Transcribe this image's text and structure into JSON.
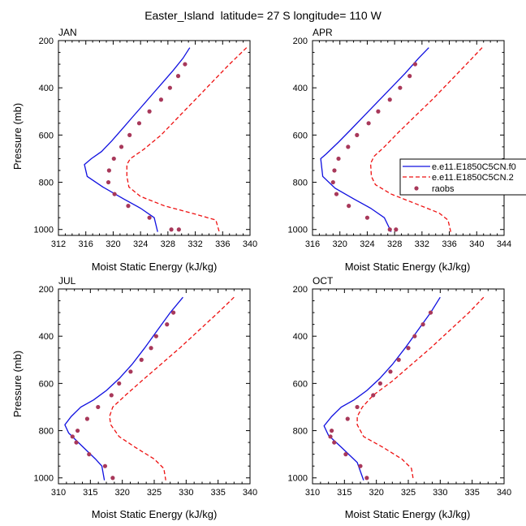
{
  "figure": {
    "title": "Easter_Island  latitude= 27 S longitude= 110 W"
  },
  "styles": {
    "model_a": {
      "color": "#1010e0",
      "dash": "solid"
    },
    "model_b": {
      "color": "#ee1111",
      "dash": "dashed"
    },
    "raobs": {
      "color": "#a8385a",
      "marker": "dot"
    }
  },
  "legend": {
    "entries": [
      "e.e11.E1850C5CN.f0",
      "e.e11.E1850C5CN.2",
      "raobs"
    ]
  },
  "chart_data": [
    {
      "type": "line",
      "panel": "JAN",
      "title": "JAN",
      "xlabel": "Moist Static Energy (kJ/kg)",
      "ylabel": "Pressure (mb)",
      "xlim": [
        312,
        340
      ],
      "ylim": [
        200,
        1025
      ],
      "y_inverted": true,
      "xticks": [
        312,
        316,
        320,
        324,
        328,
        332,
        336,
        340
      ],
      "yticks": [
        200,
        400,
        600,
        800,
        1000
      ],
      "series": [
        {
          "name": "e.e11.E1850C5CN.f0",
          "style": "model_a",
          "x": [
            331.2,
            330.2,
            328.8,
            327.3,
            325.8,
            324.3,
            322.8,
            321.3,
            319.8,
            318.3,
            316.8,
            315.8,
            316.2,
            318.5,
            321.5,
            324.0,
            326.0,
            326.5
          ],
          "y": [
            230,
            275,
            325,
            375,
            425,
            475,
            525,
            575,
            625,
            670,
            700,
            725,
            775,
            820,
            870,
            910,
            950,
            1010
          ]
        },
        {
          "name": "e.e11.E1850C5CN.2",
          "style": "model_b",
          "x": [
            339.5,
            337.0,
            334.5,
            332.0,
            329.5,
            327.0,
            324.5,
            322.5,
            322.0,
            322.0,
            322.3,
            324.0,
            327.5,
            332.0,
            335.0,
            335.5
          ],
          "y": [
            230,
            300,
            375,
            450,
            525,
            600,
            660,
            700,
            725,
            775,
            820,
            860,
            900,
            935,
            960,
            1010
          ]
        },
        {
          "name": "raobs",
          "style": "raobs",
          "marker": "dot",
          "x": [
            330.5,
            329.5,
            328.3,
            327.0,
            325.3,
            323.8,
            322.4,
            321.2,
            320.1,
            319.4,
            319.3,
            320.2,
            322.2,
            325.3,
            328.5,
            329.6
          ],
          "y": [
            300,
            350,
            400,
            450,
            500,
            550,
            600,
            650,
            700,
            750,
            800,
            850,
            900,
            950,
            1000,
            1000
          ]
        }
      ]
    },
    {
      "type": "line",
      "panel": "APR",
      "title": "APR",
      "xlabel": "Moist Static Energy (kJ/kg)",
      "ylabel": "",
      "xlim": [
        316,
        344
      ],
      "ylim": [
        200,
        1025
      ],
      "y_inverted": true,
      "xticks": [
        316,
        320,
        324,
        328,
        332,
        336,
        340,
        344
      ],
      "yticks": [
        200,
        400,
        600,
        800,
        1000
      ],
      "series": [
        {
          "name": "e.e11.E1850C5CN.f0",
          "style": "model_a",
          "x": [
            333.0,
            331.5,
            329.5,
            327.5,
            325.5,
            323.5,
            321.5,
            319.8,
            318.0,
            317.2,
            317.5,
            319.3,
            322.0,
            324.5,
            326.5,
            327.5
          ],
          "y": [
            230,
            275,
            340,
            400,
            460,
            520,
            580,
            630,
            680,
            700,
            775,
            825,
            870,
            910,
            950,
            1010
          ]
        },
        {
          "name": "e.e11.E1850C5CN.2",
          "style": "model_b",
          "x": [
            340.8,
            338.5,
            336.0,
            333.5,
            331.0,
            328.5,
            326.5,
            325.0,
            324.5,
            324.6,
            325.2,
            327.5,
            331.0,
            334.5,
            335.8,
            336.2
          ],
          "y": [
            230,
            300,
            375,
            450,
            520,
            590,
            650,
            690,
            720,
            775,
            810,
            850,
            890,
            930,
            960,
            1010
          ]
        },
        {
          "name": "raobs",
          "style": "raobs",
          "marker": "dot",
          "x": [
            331.0,
            330.2,
            328.8,
            327.3,
            325.6,
            324.2,
            322.5,
            321.2,
            319.8,
            319.2,
            319.0,
            319.5,
            321.3,
            324.0,
            327.3,
            328.2
          ],
          "y": [
            300,
            350,
            400,
            450,
            500,
            550,
            600,
            650,
            700,
            750,
            800,
            850,
            900,
            950,
            1000,
            1000
          ]
        }
      ]
    },
    {
      "type": "line",
      "panel": "JUL",
      "title": "JUL",
      "xlabel": "Moist Static Energy (kJ/kg)",
      "ylabel": "Pressure (mb)",
      "xlim": [
        310,
        340
      ],
      "ylim": [
        200,
        1025
      ],
      "y_inverted": true,
      "xticks": [
        310,
        315,
        320,
        325,
        330,
        335,
        340
      ],
      "yticks": [
        200,
        400,
        600,
        800,
        1000
      ],
      "series": [
        {
          "name": "e.e11.E1850C5CN.f0",
          "style": "model_a",
          "x": [
            329.5,
            327.5,
            325.5,
            323.5,
            321.5,
            319.5,
            317.5,
            315.5,
            313.5,
            312.0,
            311.0,
            311.6,
            313.5,
            315.8,
            316.8,
            317.2
          ],
          "y": [
            235,
            300,
            375,
            450,
            520,
            580,
            630,
            670,
            700,
            740,
            775,
            810,
            860,
            920,
            950,
            1010
          ]
        },
        {
          "name": "e.e11.E1850C5CN.2",
          "style": "model_b",
          "x": [
            337.5,
            335.0,
            332.0,
            329.0,
            326.0,
            323.0,
            320.5,
            318.5,
            318.0,
            318.2,
            319.5,
            322.0,
            325.0,
            326.5,
            326.8
          ],
          "y": [
            235,
            300,
            375,
            450,
            520,
            590,
            650,
            700,
            740,
            775,
            825,
            870,
            920,
            960,
            1010
          ]
        },
        {
          "name": "raobs",
          "style": "raobs",
          "marker": "dot",
          "x": [
            328.0,
            327.0,
            325.3,
            324.5,
            323.0,
            321.3,
            319.5,
            318.3,
            316.2,
            314.5,
            313.0,
            312.2,
            312.8,
            314.8,
            317.3,
            318.5
          ],
          "y": [
            300,
            350,
            400,
            450,
            500,
            550,
            600,
            650,
            700,
            750,
            800,
            825,
            850,
            900,
            950,
            1000
          ]
        }
      ]
    },
    {
      "type": "line",
      "panel": "OCT",
      "title": "OCT",
      "xlabel": "Moist Static Energy (kJ/kg)",
      "ylabel": "",
      "xlim": [
        310,
        340
      ],
      "ylim": [
        200,
        1025
      ],
      "y_inverted": true,
      "xticks": [
        310,
        315,
        320,
        325,
        330,
        335,
        340
      ],
      "yticks": [
        200,
        400,
        600,
        800,
        1000
      ],
      "series": [
        {
          "name": "e.e11.E1850C5CN.f0",
          "style": "model_a",
          "x": [
            330.0,
            328.5,
            326.5,
            324.5,
            322.5,
            320.5,
            318.5,
            316.5,
            314.5,
            313.0,
            311.8,
            312.5,
            314.5,
            317.0,
            318.0
          ],
          "y": [
            235,
            300,
            375,
            450,
            520,
            580,
            630,
            670,
            700,
            740,
            780,
            820,
            870,
            935,
            1010
          ]
        },
        {
          "name": "e.e11.E1850C5CN.2",
          "style": "model_b",
          "x": [
            336.8,
            334.5,
            331.5,
            328.5,
            325.5,
            322.5,
            319.5,
            317.8,
            317.0,
            317.0,
            318.0,
            321.0,
            324.0,
            325.5,
            325.8
          ],
          "y": [
            235,
            300,
            375,
            450,
            520,
            590,
            650,
            700,
            740,
            775,
            825,
            870,
            920,
            960,
            1010
          ]
        },
        {
          "name": "raobs",
          "style": "raobs",
          "marker": "dot",
          "x": [
            328.5,
            327.3,
            326.0,
            325.0,
            323.5,
            322.2,
            320.6,
            319.5,
            317.0,
            315.5,
            313.0,
            312.8,
            313.4,
            315.2,
            317.5,
            318.5
          ],
          "y": [
            300,
            350,
            400,
            450,
            500,
            550,
            600,
            650,
            700,
            750,
            800,
            825,
            850,
            900,
            950,
            1000
          ]
        }
      ]
    }
  ]
}
